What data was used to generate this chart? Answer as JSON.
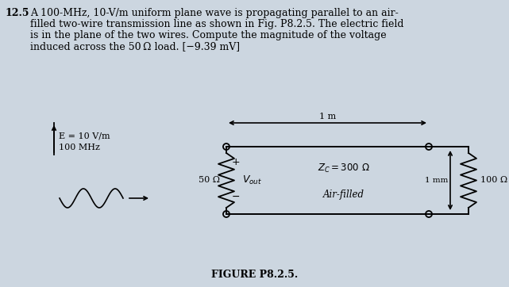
{
  "problem_num": "12.5",
  "line1": "A 100-MHz, 10-V/m uniform plane wave is propagating parallel to an air-",
  "line2": "filled two-wire transmission line as shown in Fig. P8.2.5. The electric field",
  "line3": "is in the plane of the two wires. Compute the magnitude of the voltage",
  "line4": "induced across the 50 Ω load. [−9.39 mV]",
  "fig_caption": "FIGURE P8.2.5.",
  "E_label": "E = 10 V/m",
  "freq_label": "100 MHz",
  "R1_label": "50 Ω",
  "Zc_label": "Z_C = 300 Ω",
  "air_label": "Air-filled",
  "dist_label": "1 m",
  "sep_label": "1 mm",
  "R2_label": "100 Ω",
  "vout_plus": "+",
  "vout_minus": "−",
  "bg_color": "#ccd6e0",
  "line_color": "#000000",
  "text_color": "#000000",
  "fig_width": 6.41,
  "fig_height": 3.62,
  "dpi": 100,
  "text_fs": 9.0,
  "circuit_fs": 8.0
}
